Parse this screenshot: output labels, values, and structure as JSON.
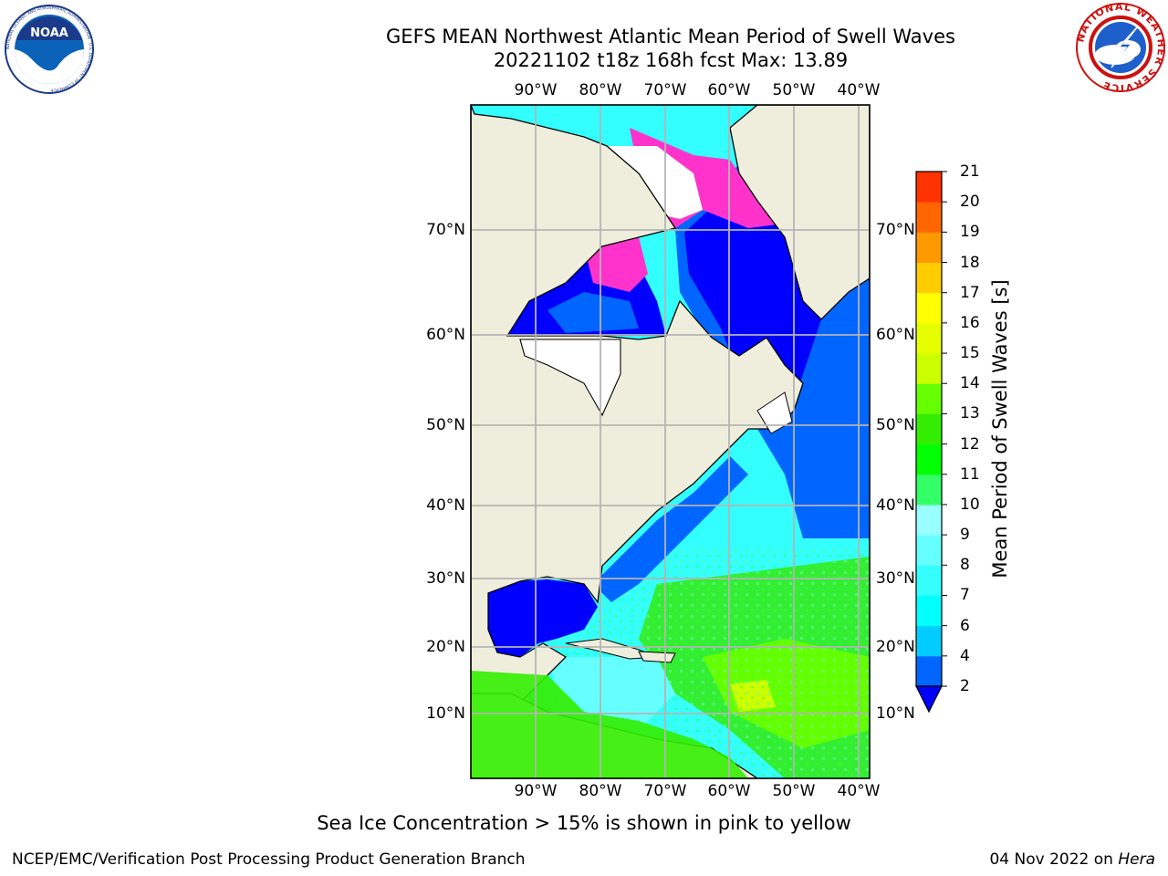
{
  "header": {
    "title_line1": "GEFS MEAN Northwest Atlantic Mean Period of Swell Waves",
    "title_line2": "20221102 t18z 168h fcst   Max: 13.89"
  },
  "logos": {
    "left_text": "NOAA",
    "left_ring_text": "NATIONAL OCEANIC AND ATMOSPHERIC ADMINISTRATION · U.S. DEPARTMENT OF COMMERCE",
    "right_ring_text": "NATIONAL WEATHER SERVICE"
  },
  "map": {
    "lon_ticks": [
      "90°W",
      "80°W",
      "70°W",
      "60°W",
      "50°W",
      "40°W"
    ],
    "lat_ticks": [
      "70°N",
      "60°N",
      "50°N",
      "40°N",
      "30°N",
      "20°N",
      "10°N"
    ]
  },
  "colorbar": {
    "title": "Mean Period of Swell Waves [s]",
    "ticks": [
      "2",
      "4",
      "6",
      "7",
      "8",
      "9",
      "10",
      "11",
      "12",
      "13",
      "14",
      "15",
      "16",
      "17",
      "18",
      "19",
      "20",
      "21"
    ],
    "colors": [
      "#0066ff",
      "#00ccff",
      "#00ffff",
      "#33ffff",
      "#66ffff",
      "#99ffff",
      "#33ff66",
      "#00ff00",
      "#33ee00",
      "#66ff00",
      "#ccff00",
      "#e5ff00",
      "#ffff00",
      "#ffcc00",
      "#ff9900",
      "#ff6600",
      "#ff3300",
      "#ff0000"
    ],
    "under_color": "#0000ff"
  },
  "notes": {
    "ice": "Sea Ice Concentration > 15% is shown in pink to yellow"
  },
  "footer": {
    "left": "NCEP/EMC/Verification Post Processing Product Generation Branch",
    "right_prefix": "04 Nov 2022 on ",
    "right_italic": "Hera"
  }
}
